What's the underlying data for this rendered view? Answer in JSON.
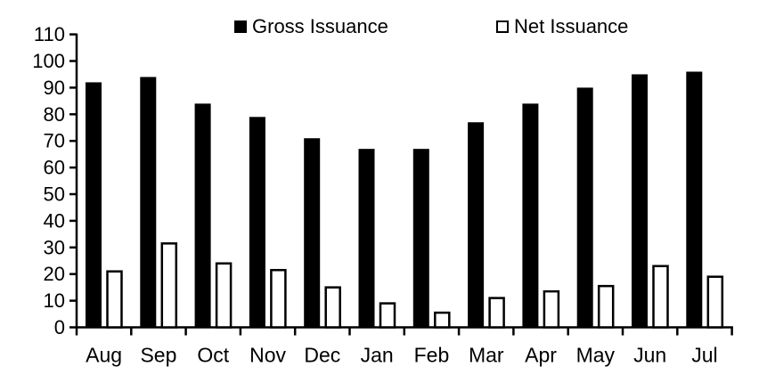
{
  "chart_data": {
    "type": "bar",
    "title": "",
    "xlabel": "",
    "ylabel": "",
    "categories": [
      "Aug",
      "Sep",
      "Oct",
      "Nov",
      "Dec",
      "Jan",
      "Feb",
      "Mar",
      "Apr",
      "May",
      "Jun",
      "Jul"
    ],
    "series": [
      {
        "name": "Gross Issuance",
        "values": [
          92,
          94,
          84,
          79,
          71,
          67,
          67,
          77,
          84,
          90,
          95,
          96
        ],
        "fill": "#000000",
        "stroke": "#000000"
      },
      {
        "name": "Net Issuance",
        "values": [
          21,
          31.5,
          24,
          21.5,
          15,
          9,
          5.5,
          11,
          13.5,
          15.5,
          23,
          19
        ],
        "fill": "#ffffff",
        "stroke": "#000000"
      }
    ],
    "ylim": [
      0,
      110
    ],
    "ytick_step": 10,
    "yticks": [
      0,
      10,
      20,
      30,
      40,
      50,
      60,
      70,
      80,
      90,
      100,
      110
    ],
    "grid": false,
    "legend_position": "top",
    "axis_color": "#000000",
    "background": "#ffffff"
  }
}
